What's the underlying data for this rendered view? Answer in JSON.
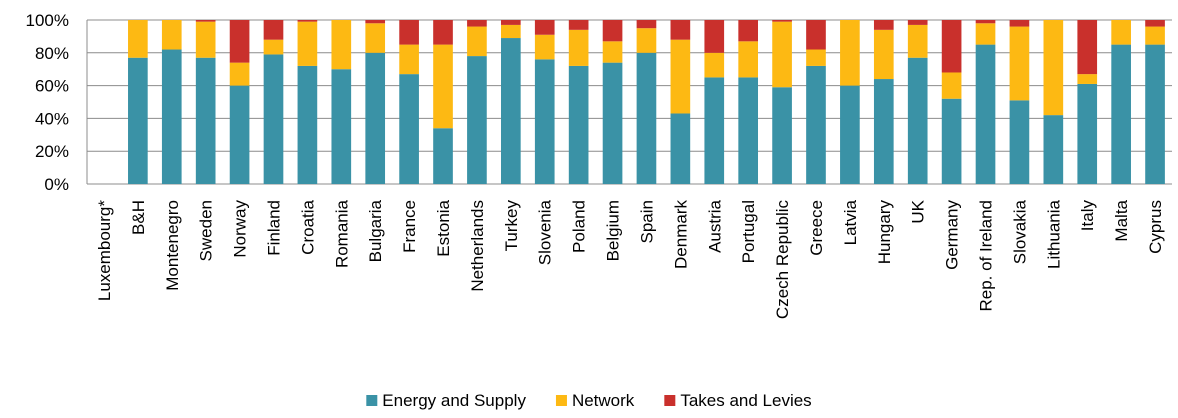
{
  "chart_data": {
    "type": "bar",
    "stacked": true,
    "categories": [
      "Luxembourg*",
      "B&H",
      "Montenegro",
      "Sweden",
      "Norway",
      "Finland",
      "Croatia",
      "Romania",
      "Bulgaria",
      "France",
      "Estonia",
      "Netherlands",
      "Turkey",
      "Slovenia",
      "Poland",
      "Belgium",
      "Spain",
      "Denmark",
      "Austria",
      "Portugal",
      "Czech Republic",
      "Greece",
      "Latvia",
      "Hungary",
      "UK",
      "Germany",
      "Rep. of Ireland",
      "Slovakia",
      "Lithuania",
      "Italy",
      "Malta",
      "Cyprus"
    ],
    "series": [
      {
        "name": "Energy and Supply",
        "color": "#3A92A6",
        "values": [
          0,
          77,
          82,
          77,
          60,
          79,
          72,
          70,
          80,
          67,
          34,
          78,
          89,
          76,
          72,
          74,
          80,
          43,
          65,
          65,
          59,
          72,
          60,
          64,
          77,
          52,
          85,
          51,
          42,
          61,
          85,
          85
        ]
      },
      {
        "name": "Network",
        "color": "#FDB913",
        "values": [
          0,
          23,
          18,
          22,
          14,
          9,
          27,
          30,
          18,
          18,
          51,
          18,
          8,
          15,
          22,
          13,
          15,
          45,
          15,
          22,
          40,
          10,
          40,
          30,
          20,
          16,
          13,
          45,
          58,
          6,
          15,
          11
        ]
      },
      {
        "name": "Takes and Levies",
        "color": "#C9302C",
        "values": [
          0,
          0,
          0,
          1,
          26,
          12,
          1,
          0,
          2,
          15,
          15,
          4,
          3,
          9,
          6,
          13,
          5,
          12,
          20,
          13,
          1,
          18,
          0,
          6,
          3,
          32,
          2,
          4,
          0,
          33,
          0,
          4
        ]
      }
    ],
    "yticks": [
      "0%",
      "20%",
      "40%",
      "60%",
      "80%",
      "100%"
    ],
    "ylim": [
      0,
      100
    ],
    "title": "",
    "xlabel": "",
    "ylabel": "",
    "grid": true,
    "legend_position": "bottom-center"
  }
}
